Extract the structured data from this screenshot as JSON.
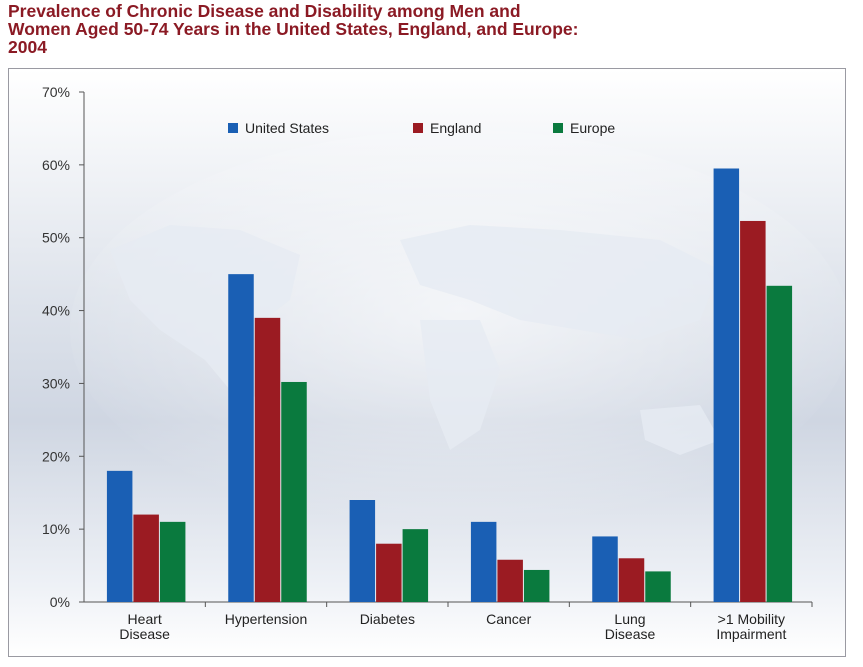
{
  "chart_data": {
    "type": "bar",
    "title_lines": [
      "Prevalence of Chronic Disease and Disability among Men and",
      "Women Aged 50-74 Years in the United States, England, and Europe:",
      "2004"
    ],
    "categories": [
      [
        "Heart",
        "Disease"
      ],
      [
        "Hypertension"
      ],
      [
        "Diabetes"
      ],
      [
        "Cancer"
      ],
      [
        "Lung",
        "Disease"
      ],
      [
        ">1 Mobility",
        "Impairment"
      ]
    ],
    "series": [
      {
        "name": "United States",
        "color": "#1a5fb4",
        "values": [
          18,
          45,
          14,
          11,
          9,
          59.5
        ]
      },
      {
        "name": "England",
        "color": "#9b1b22",
        "values": [
          12,
          39,
          8,
          5.8,
          6,
          52.3
        ]
      },
      {
        "name": "Europe",
        "color": "#0a7a3e",
        "values": [
          11,
          30.2,
          10,
          4.4,
          4.2,
          43.4
        ]
      }
    ],
    "ylim": [
      0,
      70
    ],
    "yticks": [
      "0%",
      "10%",
      "20%",
      "30%",
      "40%",
      "50%",
      "60%",
      "70%"
    ],
    "legend_position": "top-center",
    "grid": false
  }
}
